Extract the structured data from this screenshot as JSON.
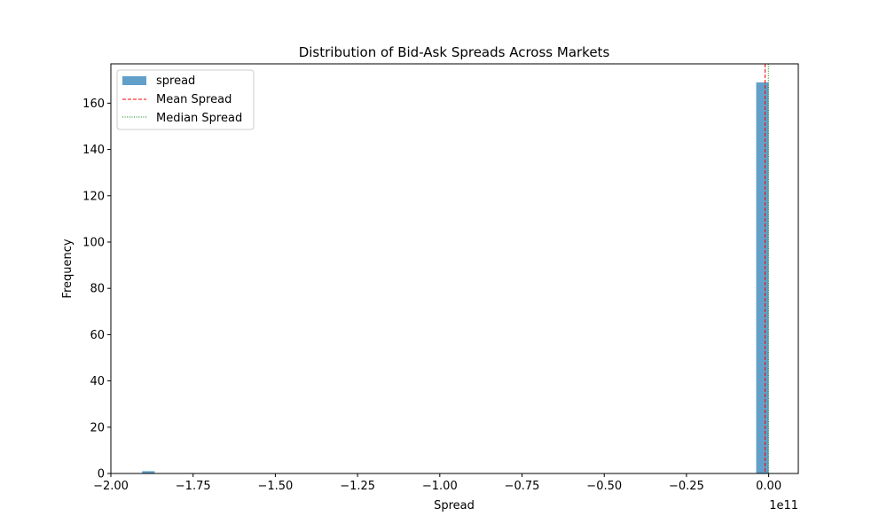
{
  "chart_data": {
    "type": "bar",
    "subtype": "histogram",
    "title": "Distribution of Bid-Ask Spreads Across Markets",
    "xlabel": "Spread",
    "ylabel": "Frequency",
    "x_offset_label": "1e11",
    "x_scale": 100000000000.0,
    "xlim": [
      -2.0,
      0.09
    ],
    "ylim": [
      0,
      177
    ],
    "x_ticks": [
      -2.0,
      -1.75,
      -1.5,
      -1.25,
      -1.0,
      -0.75,
      -0.5,
      -0.25,
      0.0
    ],
    "x_tick_labels": [
      "−2.00",
      "−1.75",
      "−1.50",
      "−1.25",
      "−1.00",
      "−0.75",
      "−0.50",
      "−0.25",
      "0.00"
    ],
    "y_ticks": [
      0,
      20,
      40,
      60,
      80,
      100,
      120,
      140,
      160
    ],
    "y_tick_labels": [
      "0",
      "20",
      "40",
      "60",
      "80",
      "100",
      "120",
      "140",
      "160"
    ],
    "grid": false,
    "legend_position": "upper-left",
    "series": [
      {
        "name": "spread",
        "kind": "histogram",
        "color": "#1f77b4",
        "alpha": 0.7,
        "bins": [
          {
            "x0": -1.905,
            "x1": -1.867,
            "count": 1
          },
          {
            "x0": -0.038,
            "x1": 0.0,
            "count": 169
          }
        ]
      },
      {
        "name": "Mean Spread",
        "kind": "vline",
        "x": -0.011,
        "color": "#ff0000",
        "linestyle": "dashed"
      },
      {
        "name": "Median Spread",
        "kind": "vline",
        "x": -0.001,
        "color": "#008000",
        "linestyle": "dotted"
      }
    ]
  }
}
